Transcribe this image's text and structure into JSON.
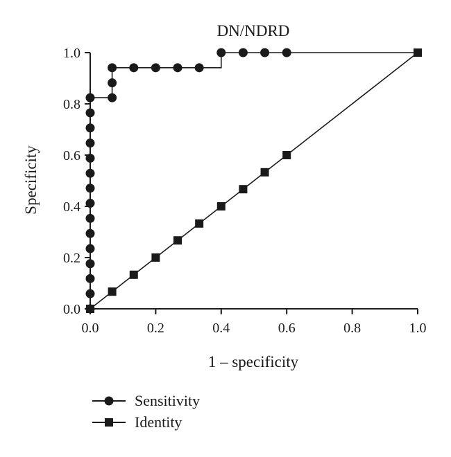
{
  "chart_data": {
    "type": "line",
    "title": "DN/NDRD",
    "xlabel": "1 – specificity",
    "ylabel": "Specificity",
    "xlim": [
      0,
      1
    ],
    "ylim": [
      0,
      1
    ],
    "x_ticks": [
      "0.0",
      "0.2",
      "0.4",
      "0.6",
      "0.8",
      "1.0"
    ],
    "y_ticks": [
      "0.0",
      "0.2",
      "0.4",
      "0.6",
      "0.8",
      "1.0"
    ],
    "grid": false,
    "legend_position": "bottom-left",
    "series": [
      {
        "name": "Sensitivity",
        "marker": "circle",
        "x": [
          0,
          0,
          0,
          0,
          0,
          0,
          0,
          0,
          0,
          0,
          0,
          0,
          0,
          0,
          0,
          0,
          0,
          0.067,
          0.067,
          0.067,
          0.133,
          0.2,
          0.267,
          0.333,
          0.4,
          0.4,
          0.467,
          0.533,
          0.6,
          1.0
        ],
        "y": [
          0,
          0.059,
          0.118,
          0.176,
          0.235,
          0.294,
          0.353,
          0.412,
          0.471,
          0.529,
          0.588,
          0.647,
          0.706,
          0.765,
          0.824,
          0.824,
          0.824,
          0.824,
          0.882,
          0.941,
          0.941,
          0.941,
          0.941,
          0.941,
          0.941,
          1.0,
          1.0,
          1.0,
          1.0,
          1.0
        ],
        "markers": [
          true,
          true,
          true,
          true,
          true,
          true,
          true,
          true,
          true,
          true,
          true,
          true,
          true,
          true,
          true,
          false,
          false,
          true,
          true,
          true,
          true,
          true,
          true,
          true,
          false,
          true,
          true,
          true,
          true,
          false
        ]
      },
      {
        "name": "Identity",
        "marker": "square",
        "x": [
          0,
          0.067,
          0.133,
          0.2,
          0.267,
          0.333,
          0.4,
          0.467,
          0.533,
          0.6,
          1.0
        ],
        "y": [
          0,
          0.067,
          0.133,
          0.2,
          0.267,
          0.333,
          0.4,
          0.467,
          0.533,
          0.6,
          1.0
        ]
      }
    ]
  }
}
